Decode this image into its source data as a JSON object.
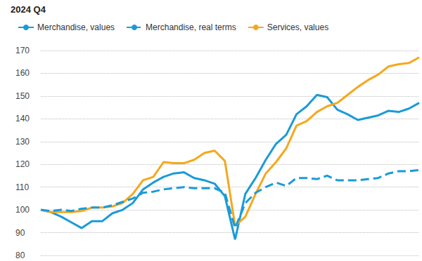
{
  "chart_data": {
    "type": "line",
    "title": "2024 Q4",
    "categories": [
      null,
      null,
      null,
      null,
      null,
      null,
      null,
      null,
      null,
      null,
      null,
      null,
      null,
      null,
      null,
      null,
      null,
      null,
      null,
      null,
      null,
      null,
      null,
      null,
      null,
      null,
      null,
      null,
      null,
      null,
      null,
      null,
      null,
      null,
      null,
      null,
      null,
      null
    ],
    "series": [
      {
        "name": "Merchandise, values",
        "color": "#1a9bd7",
        "line_style": "solid",
        "values": [
          100,
          99,
          97,
          94.5,
          92,
          95,
          95,
          98.5,
          100,
          103,
          109,
          112,
          114.5,
          116,
          116.5,
          114,
          113,
          111.5,
          106,
          87,
          107,
          114,
          122,
          129,
          133,
          142,
          145.5,
          150.5,
          149.5,
          144,
          142,
          139.5,
          140.5,
          141.5,
          143.5,
          143,
          144.5,
          147
        ]
      },
      {
        "name": "Merchandise, real terms",
        "color": "#1a9bd7",
        "line_style": "dashed",
        "values": [
          100,
          99.5,
          100,
          99.5,
          100.5,
          101,
          101,
          102,
          103.5,
          105,
          107.5,
          108,
          109,
          109.5,
          110,
          109.5,
          109.5,
          109.5,
          107.5,
          92,
          103,
          107.5,
          110,
          112,
          110.5,
          114,
          114,
          113.5,
          115,
          113,
          113,
          113,
          113.5,
          114,
          116,
          117,
          117,
          117.5
        ]
      },
      {
        "name": "Services, values",
        "color": "#f5a81c",
        "line_style": "solid",
        "values": [
          100,
          99,
          99,
          99,
          99.5,
          101,
          101,
          101.5,
          103,
          107,
          113,
          114.5,
          121,
          120.5,
          120.5,
          122,
          125,
          126,
          121.5,
          93,
          97,
          107,
          116,
          121,
          127,
          137,
          139,
          143,
          145.5,
          147,
          150.5,
          154,
          157,
          159.5,
          163,
          164,
          164.5,
          167
        ]
      }
    ],
    "ylim": [
      80,
      170
    ],
    "yticks": [
      80,
      90,
      100,
      110,
      120,
      130,
      140,
      150,
      160,
      170
    ],
    "grid": true,
    "legend": "top-left",
    "marker": "none",
    "tick_labels": "y"
  }
}
